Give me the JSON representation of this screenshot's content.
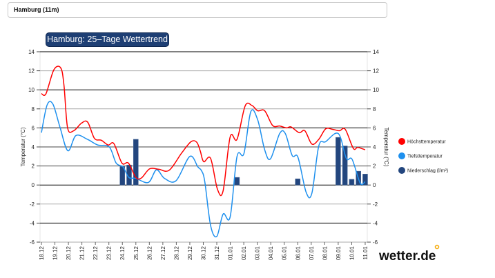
{
  "location_field": {
    "value": "Hamburg (11m)"
  },
  "chart_data": {
    "type": "line",
    "title": "Hamburg: 25–Tage Wettertrend",
    "ylabel_left": "Temperatur (°C)",
    "ylabel_right": "Temperatur (°C)",
    "ylim": [
      -6,
      14
    ],
    "yticks": [
      14,
      12,
      10,
      8,
      6,
      4,
      2,
      0,
      -2,
      -4,
      -6
    ],
    "categories": [
      "18.12",
      "19.12",
      "20.12",
      "21.12",
      "22.12",
      "23.12",
      "24.12",
      "25.12",
      "26.12",
      "27.12",
      "28.12",
      "29.12",
      "30.12",
      "31.12",
      "01.01",
      "02.01",
      "03.01",
      "04.01",
      "05.01",
      "06.01",
      "07.01",
      "08.01",
      "09.01",
      "10.01",
      "11.01"
    ],
    "series": [
      {
        "name": "Höchsttemperatur",
        "type": "line",
        "color": "#ff0000",
        "points": [
          [
            0,
            9.6
          ],
          [
            0.34,
            9.6
          ],
          [
            0.92,
            12.1
          ],
          [
            1.43,
            12.3
          ],
          [
            1.67,
            10.5
          ],
          [
            1.94,
            6.0
          ],
          [
            2.39,
            5.7
          ],
          [
            2.97,
            6.5
          ],
          [
            3.43,
            6.6
          ],
          [
            3.93,
            4.9
          ],
          [
            4.44,
            4.7
          ],
          [
            4.95,
            4.2
          ],
          [
            5.37,
            4.35
          ],
          [
            5.97,
            2.3
          ],
          [
            6.45,
            2.3
          ],
          [
            7.0,
            0.8
          ],
          [
            7.42,
            0.75
          ],
          [
            8.02,
            1.7
          ],
          [
            8.7,
            1.65
          ],
          [
            9.47,
            1.55
          ],
          [
            10.39,
            3.35
          ],
          [
            11.09,
            4.55
          ],
          [
            11.51,
            4.5
          ],
          [
            11.77,
            3.6
          ],
          [
            12.03,
            2.45
          ],
          [
            12.54,
            2.8
          ],
          [
            13.05,
            -0.45
          ],
          [
            13.47,
            -0.6
          ],
          [
            13.99,
            5.05
          ],
          [
            14.5,
            4.8
          ],
          [
            15.1,
            8.3
          ],
          [
            15.61,
            8.35
          ],
          [
            16.03,
            7.8
          ],
          [
            16.55,
            7.8
          ],
          [
            17.14,
            6.25
          ],
          [
            17.66,
            6.2
          ],
          [
            18.17,
            6.0
          ],
          [
            18.51,
            6.1
          ],
          [
            19.1,
            5.5
          ],
          [
            19.53,
            5.7
          ],
          [
            20.05,
            4.3
          ],
          [
            20.56,
            4.8
          ],
          [
            21.07,
            5.9
          ],
          [
            21.58,
            5.85
          ],
          [
            22.09,
            5.7
          ],
          [
            22.52,
            5.85
          ],
          [
            23.12,
            3.85
          ],
          [
            23.45,
            3.95
          ],
          [
            24.0,
            3.7
          ]
        ]
      },
      {
        "name": "Tiefsttemperatur",
        "type": "line",
        "color": "#1e90ee",
        "points": [
          [
            0,
            5.5
          ],
          [
            0.42,
            8.4
          ],
          [
            0.85,
            8.5
          ],
          [
            1.37,
            6.1
          ],
          [
            1.96,
            3.6
          ],
          [
            2.56,
            5.2
          ],
          [
            3.41,
            4.8
          ],
          [
            4.18,
            4.2
          ],
          [
            5.03,
            4.0
          ],
          [
            5.54,
            2.3
          ],
          [
            6.05,
            1.9
          ],
          [
            6.48,
            0.8
          ],
          [
            7.0,
            0.7
          ],
          [
            7.93,
            0.27
          ],
          [
            8.53,
            1.6
          ],
          [
            9.12,
            0.7
          ],
          [
            9.98,
            0.45
          ],
          [
            11.0,
            3.0
          ],
          [
            11.6,
            1.9
          ],
          [
            11.87,
            1.5
          ],
          [
            12.11,
            0.35
          ],
          [
            12.54,
            -4.25
          ],
          [
            13.0,
            -5.4
          ],
          [
            13.47,
            -3.05
          ],
          [
            13.99,
            -3.35
          ],
          [
            14.5,
            3.0
          ],
          [
            15.01,
            3.3
          ],
          [
            15.52,
            7.7
          ],
          [
            16.03,
            6.85
          ],
          [
            16.55,
            3.7
          ],
          [
            16.98,
            2.75
          ],
          [
            17.66,
            5.4
          ],
          [
            18.08,
            5.4
          ],
          [
            18.59,
            3.1
          ],
          [
            19.02,
            2.9
          ],
          [
            19.62,
            -0.75
          ],
          [
            20.05,
            -0.85
          ],
          [
            20.56,
            4.1
          ],
          [
            21.07,
            4.55
          ],
          [
            22.01,
            5.4
          ],
          [
            22.6,
            2.8
          ],
          [
            23.03,
            2.7
          ],
          [
            23.63,
            0.2
          ],
          [
            24.0,
            0.35
          ]
        ]
      },
      {
        "name": "Niederschlag (l/m²)",
        "type": "bar",
        "color": "#23467e",
        "points": [
          [
            6,
            1.95
          ],
          [
            6.5,
            2.1
          ],
          [
            7,
            4.8
          ],
          [
            14.5,
            0.8
          ],
          [
            19,
            0.65
          ],
          [
            22,
            5.0
          ],
          [
            22.5,
            4.1
          ],
          [
            23,
            0.6
          ],
          [
            23.5,
            1.45
          ],
          [
            24,
            1.15
          ]
        ]
      }
    ],
    "legend_position": "right",
    "grid": true
  },
  "branding": {
    "logo_text": "wetter.de"
  }
}
